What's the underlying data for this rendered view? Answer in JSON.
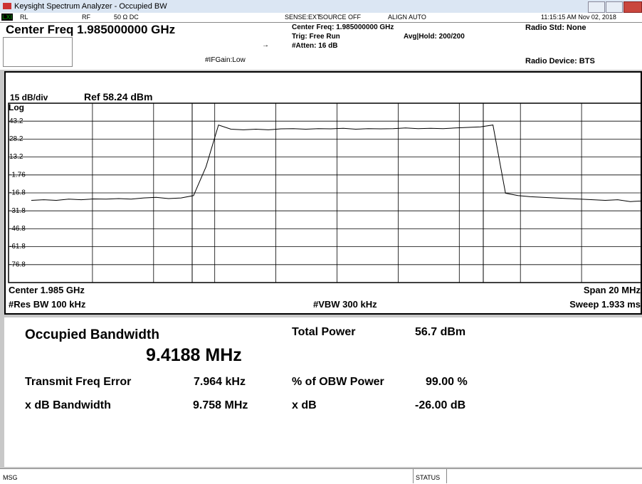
{
  "window": {
    "title": "Keysight Spectrum Analyzer - Occupied BW"
  },
  "status_row": {
    "rl": "RL",
    "rf": "RF",
    "input": "50 Ω  DC",
    "sense": "SENSE:EXT",
    "source": "SOURCE OFF",
    "align": "ALIGN AUTO",
    "datetime": "11:15:15 AM Nov 02, 2018"
  },
  "header": {
    "center_freq": "Center Freq 1.985000000 GHz",
    "if_gain": "#IFGain:Low",
    "center_freq_info": "Center Freq: 1.985000000 GHz",
    "trig": "Trig: Free Run",
    "avg_hold": "Avg|Hold: 200/200",
    "atten": "#Atten: 16 dB",
    "radio_std": "Radio Std: None",
    "radio_device": "Radio Device: BTS"
  },
  "chart_data": {
    "type": "line",
    "scale_label": "15 dB/div",
    "ref_label": "Ref 58.24 dBm",
    "scale_type": "Log",
    "ylim": [
      -91.76,
      58.24
    ],
    "yticks": [
      {
        "value": 43.24,
        "label": "43.2"
      },
      {
        "value": 28.24,
        "label": "28.2"
      },
      {
        "value": 13.24,
        "label": "13.2"
      },
      -1.76,
      {
        "value": -16.76,
        "label": "-16.8"
      },
      {
        "value": -31.76,
        "label": "-31.8"
      },
      {
        "value": -46.76,
        "label": "-46.8"
      },
      {
        "value": -61.76,
        "label": "-61.8"
      },
      {
        "value": -76.76,
        "label": "-76.8"
      }
    ],
    "grid": true,
    "color": "#000000",
    "values": [
      -23,
      -22.5,
      -23,
      -22,
      -22.5,
      -21.8,
      -22,
      -21.5,
      -22,
      -21,
      -20.5,
      -21.5,
      -21,
      -19,
      5,
      40,
      36.5,
      36,
      36.5,
      36,
      36.8,
      37,
      36.5,
      37,
      36.8,
      37.2,
      36.5,
      37,
      36.8,
      37,
      37.5,
      37,
      37.2,
      37,
      37.5,
      38,
      38.5,
      40,
      -17,
      -19,
      -20,
      -20.5,
      -21,
      -21.5,
      -22,
      -22.5,
      -23,
      -22.5,
      -24,
      -23.5
    ],
    "footer": {
      "center": "Center 1.985 GHz",
      "res_bw": "#Res BW 100 kHz",
      "vbw": "#VBW 300 kHz",
      "span": "Span 20 MHz",
      "sweep": "Sweep 1.933 ms"
    }
  },
  "results": {
    "obw_label": "Occupied Bandwidth",
    "obw_value": "9.4188 MHz",
    "total_power_label": "Total Power",
    "total_power_value": "56.7 dBm",
    "freq_error_label": "Transmit Freq Error",
    "freq_error_value": "7.964 kHz",
    "obw_power_label": "% of OBW Power",
    "obw_power_value": "99.00 %",
    "xdb_bw_label": "x dB Bandwidth",
    "xdb_bw_value": "9.758 MHz",
    "xdb_label": "x dB",
    "xdb_value": "-26.00 dB"
  },
  "status_bar": {
    "msg": "MSG",
    "status": "STATUS"
  }
}
